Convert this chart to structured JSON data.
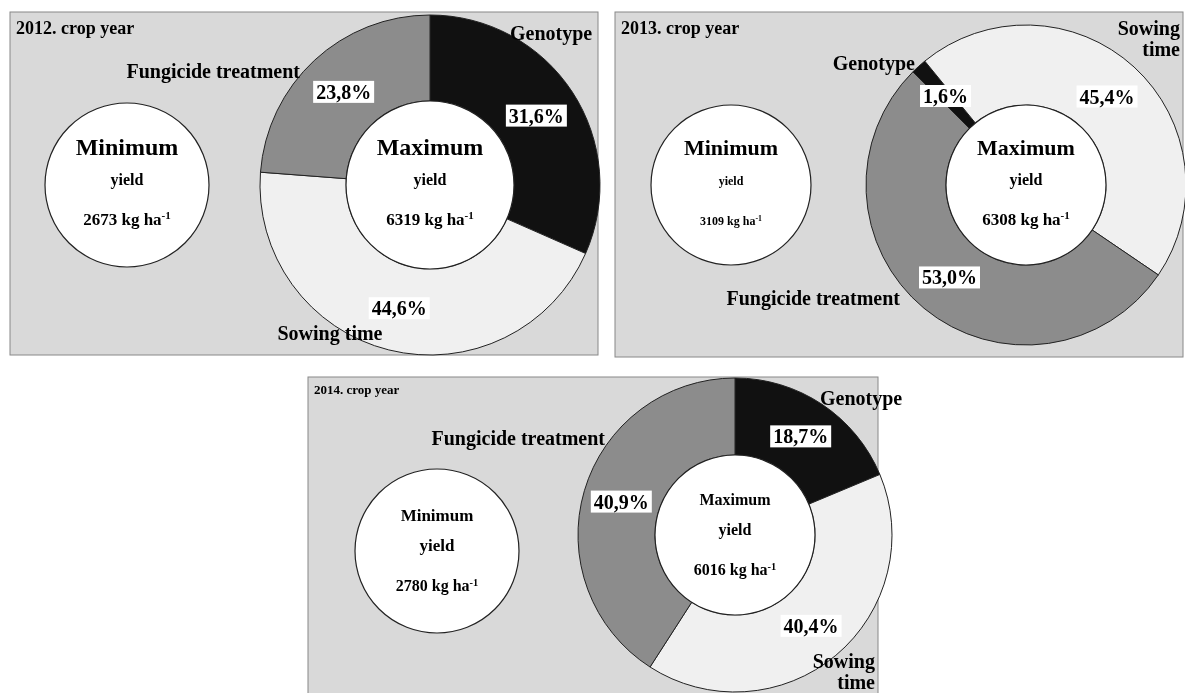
{
  "chart_data": [
    {
      "type": "donut",
      "title": "2012. crop year",
      "categories": [
        "Genotype",
        "Sowing time",
        "Fungicide treatment"
      ],
      "values": [
        31.6,
        44.6,
        23.8
      ],
      "colors": [
        "#111111",
        "#f0f0f0",
        "#8c8c8c"
      ],
      "value_labels": [
        "31,6%",
        "44,6%",
        "23,8%"
      ],
      "annotations": [
        "Minimum",
        "yield",
        "2673 kg ha$^{-1}$",
        "Maximum",
        "yield",
        "6319 kg ha$^{-1}$"
      ]
    },
    {
      "type": "donut",
      "title": "2013. crop year",
      "categories": [
        "Genotype",
        "Sowing time",
        "Fungicide treatment"
      ],
      "values": [
        1.6,
        45.4,
        53.0
      ],
      "colors": [
        "#111111",
        "#f0f0f0",
        "#8c8c8c"
      ],
      "value_labels": [
        "1,6%",
        "45,4%",
        "53,0%"
      ],
      "annotations": [
        "Minimum",
        "yield",
        "3109 kg ha$^{-1}$",
        "Maximum",
        "yield",
        "6308 kg ha$^{-1}$"
      ]
    },
    {
      "type": "donut",
      "title": "2014. crop year",
      "categories": [
        "Genotype",
        "Sowing time",
        "Fungicide treatment"
      ],
      "values": [
        18.7,
        40.4,
        40.9
      ],
      "colors": [
        "#111111",
        "#f0f0f0",
        "#8c8c8c"
      ],
      "value_labels": [
        "18,7%",
        "40,4%",
        "40,9%"
      ],
      "annotations": [
        "Minimum",
        "yield",
        "2780 kg ha$^{-1}$",
        "Maximum",
        "yield",
        "6016 kg ha$^{-1}$"
      ]
    }
  ]
}
